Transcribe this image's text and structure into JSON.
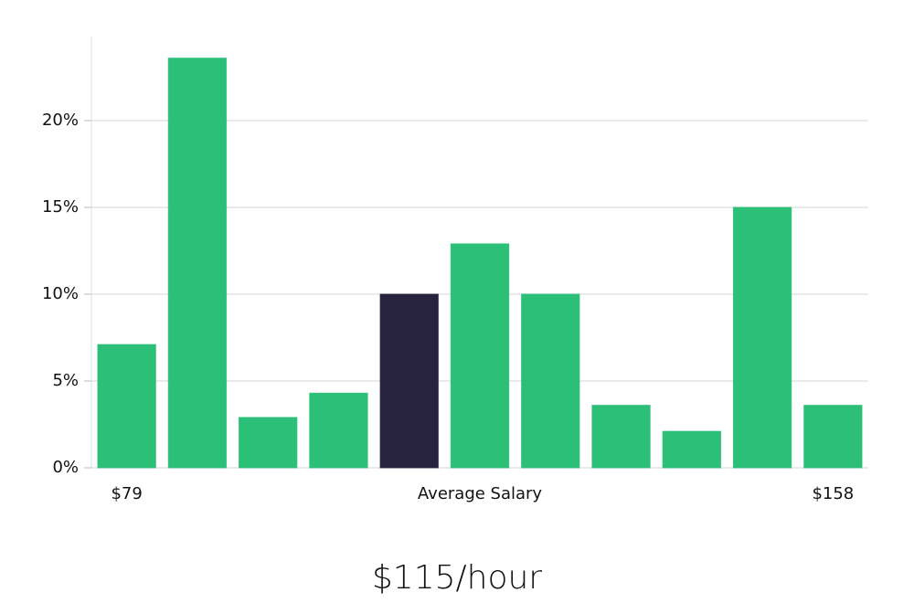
{
  "chart_data": {
    "type": "bar",
    "categories": [
      "$79",
      null,
      null,
      null,
      null,
      null,
      null,
      null,
      null,
      null,
      "$158"
    ],
    "xlabel": "Average Salary",
    "values": [
      7.1,
      23.6,
      2.9,
      4.3,
      10.0,
      12.9,
      10.0,
      3.6,
      2.1,
      15.0,
      3.6
    ],
    "colors": [
      "#2bbf77",
      "#2bbf77",
      "#2bbf77",
      "#2bbf77",
      "#27233f",
      "#2bbf77",
      "#2bbf77",
      "#2bbf77",
      "#2bbf77",
      "#2bbf77",
      "#2bbf77"
    ],
    "ylim": [
      0,
      25
    ],
    "yticks": [
      {
        "value": 0,
        "label": "0%"
      },
      {
        "value": 5,
        "label": "5%"
      },
      {
        "value": 10,
        "label": "10%"
      },
      {
        "value": 15,
        "label": "15%"
      },
      {
        "value": 20,
        "label": "20%"
      }
    ],
    "grid": true,
    "annotation": "$115/hour"
  }
}
